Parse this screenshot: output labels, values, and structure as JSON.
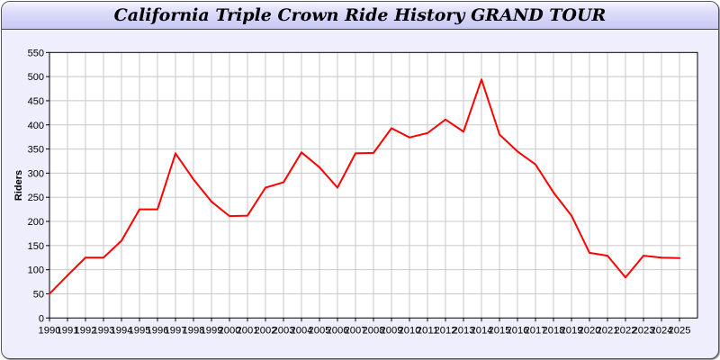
{
  "chart_data": {
    "type": "line",
    "title": "California Triple Crown Ride History GRAND TOUR",
    "xlabel": "",
    "ylabel": "Riders",
    "ylim": [
      0,
      550
    ],
    "yticks": [
      0,
      50,
      100,
      150,
      200,
      250,
      300,
      350,
      400,
      450,
      500,
      550
    ],
    "grid": true,
    "line_color": "#ff0000",
    "categories": [
      "1990",
      "1991",
      "1992",
      "1993",
      "1994",
      "1995",
      "1996",
      "1997",
      "1998",
      "1999",
      "2000",
      "2001",
      "2002",
      "2003",
      "2004",
      "2005",
      "2006",
      "2007",
      "2008",
      "2009",
      "2010",
      "2011",
      "2012",
      "2013",
      "2014",
      "2015",
      "2016",
      "2017",
      "2018",
      "2019",
      "2020",
      "2021",
      "2022",
      "2023",
      "2024",
      "2025"
    ],
    "series": [
      {
        "values": [
          50,
          88,
          125,
          125,
          160,
          225,
          225,
          341,
          287,
          241,
          211,
          212,
          270,
          281,
          343,
          312,
          270,
          341,
          342,
          393,
          374,
          383,
          411,
          386,
          494,
          380,
          345,
          318,
          260,
          212,
          135,
          129,
          84,
          129,
          125,
          124
        ]
      }
    ]
  }
}
